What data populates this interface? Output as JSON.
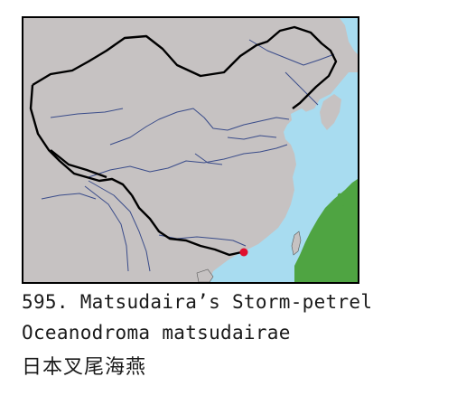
{
  "caption": {
    "number_and_name": "595. Matsudaira’s Storm-petrel",
    "scientific_name": "Oceanodroma matsudairae",
    "chinese_name": "日本叉尾海燕"
  },
  "map": {
    "land_color": "#c6c2c2",
    "sea_color": "#a8dcf0",
    "range_color": "#4fa442",
    "border_color": "#000000",
    "river_color": "#3a4c8a",
    "record_marker_color": "#e0102e"
  }
}
